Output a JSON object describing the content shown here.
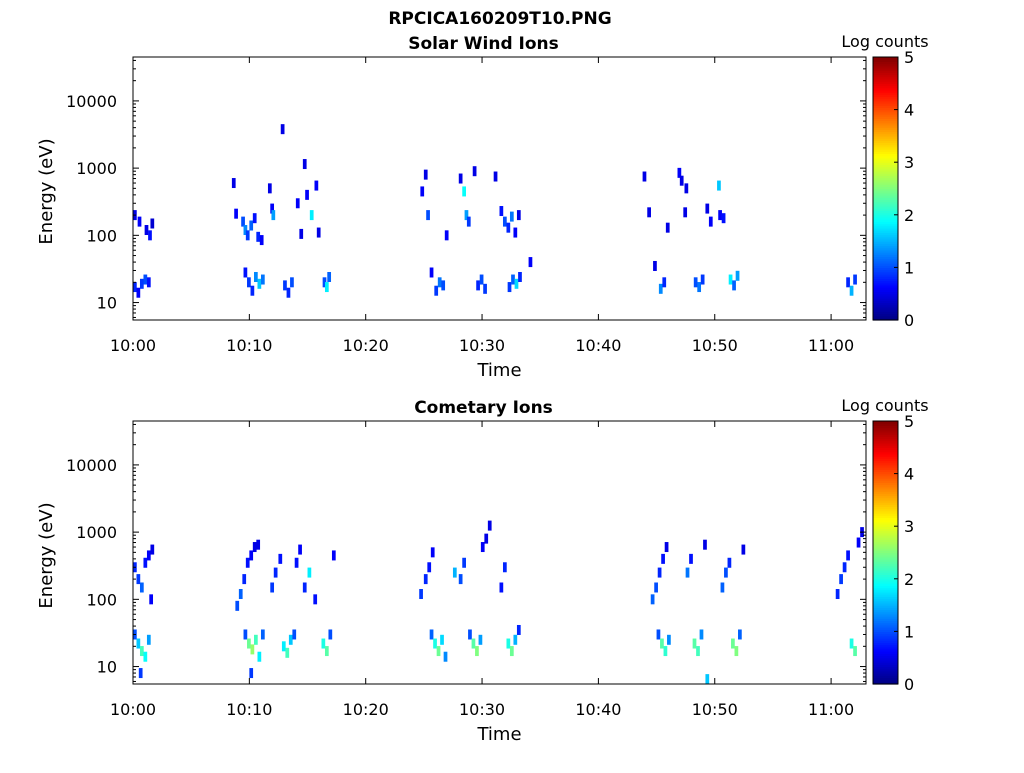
{
  "figure": {
    "suptitle": "RPCICA160209T10.PNG"
  },
  "chart_data": [
    {
      "type": "heatmap",
      "title": "Solar Wind Ions",
      "xlabel": "Time",
      "ylabel": "Energy (eV)",
      "x_ticks": [
        "10:00",
        "10:10",
        "10:20",
        "10:30",
        "10:40",
        "10:50",
        "11:00"
      ],
      "xlim_minutes": [
        0,
        63
      ],
      "y_scale": "log",
      "y_ticks": [
        "10",
        "100",
        "1000",
        "10000"
      ],
      "ylim": [
        5.5,
        45000
      ],
      "colorbar": {
        "label": "Log counts",
        "range": [
          0,
          5
        ],
        "ticks": [
          "0",
          "1",
          "2",
          "3",
          "4",
          "5"
        ],
        "colormap": "jet"
      },
      "cells": [
        {
          "t": 0.0,
          "e": 17,
          "v": 0.8
        },
        {
          "t": 0.3,
          "e": 14,
          "v": 0.6
        },
        {
          "t": 0.6,
          "e": 19,
          "v": 0.9
        },
        {
          "t": 0.9,
          "e": 22,
          "v": 1.0
        },
        {
          "t": 1.2,
          "e": 20,
          "v": 0.7
        },
        {
          "t": 0.0,
          "e": 200,
          "v": 0.5
        },
        {
          "t": 0.4,
          "e": 160,
          "v": 0.6
        },
        {
          "t": 1.0,
          "e": 120,
          "v": 0.5
        },
        {
          "t": 1.3,
          "e": 100,
          "v": 0.7
        },
        {
          "t": 1.5,
          "e": 150,
          "v": 0.4
        },
        {
          "t": 8.5,
          "e": 600,
          "v": 0.5
        },
        {
          "t": 8.7,
          "e": 210,
          "v": 0.6
        },
        {
          "t": 9.3,
          "e": 160,
          "v": 1.0
        },
        {
          "t": 9.5,
          "e": 120,
          "v": 1.3
        },
        {
          "t": 9.7,
          "e": 100,
          "v": 0.9
        },
        {
          "t": 10.0,
          "e": 140,
          "v": 1.1
        },
        {
          "t": 10.3,
          "e": 180,
          "v": 0.7
        },
        {
          "t": 10.6,
          "e": 95,
          "v": 0.8
        },
        {
          "t": 10.9,
          "e": 85,
          "v": 0.6
        },
        {
          "t": 9.5,
          "e": 28,
          "v": 0.7
        },
        {
          "t": 9.8,
          "e": 20,
          "v": 0.9
        },
        {
          "t": 10.1,
          "e": 15,
          "v": 0.8
        },
        {
          "t": 10.4,
          "e": 24,
          "v": 1.3
        },
        {
          "t": 10.7,
          "e": 19,
          "v": 1.6
        },
        {
          "t": 11.0,
          "e": 22,
          "v": 1.2
        },
        {
          "t": 11.6,
          "e": 500,
          "v": 0.5
        },
        {
          "t": 11.8,
          "e": 250,
          "v": 0.6
        },
        {
          "t": 11.9,
          "e": 200,
          "v": 1.4
        },
        {
          "t": 12.7,
          "e": 3800,
          "v": 0.5
        },
        {
          "t": 12.9,
          "e": 18,
          "v": 0.9
        },
        {
          "t": 13.2,
          "e": 14,
          "v": 0.8
        },
        {
          "t": 13.5,
          "e": 20,
          "v": 1.0
        },
        {
          "t": 14.0,
          "e": 300,
          "v": 0.6
        },
        {
          "t": 14.3,
          "e": 105,
          "v": 0.5
        },
        {
          "t": 14.6,
          "e": 1150,
          "v": 0.5
        },
        {
          "t": 14.8,
          "e": 400,
          "v": 0.6
        },
        {
          "t": 15.2,
          "e": 200,
          "v": 1.8
        },
        {
          "t": 15.6,
          "e": 550,
          "v": 0.6
        },
        {
          "t": 15.8,
          "e": 110,
          "v": 0.5
        },
        {
          "t": 16.3,
          "e": 20,
          "v": 1.0
        },
        {
          "t": 16.5,
          "e": 17,
          "v": 1.8
        },
        {
          "t": 16.7,
          "e": 24,
          "v": 1.1
        },
        {
          "t": 24.7,
          "e": 450,
          "v": 0.6
        },
        {
          "t": 25.0,
          "e": 800,
          "v": 0.5
        },
        {
          "t": 25.2,
          "e": 200,
          "v": 1.0
        },
        {
          "t": 25.5,
          "e": 28,
          "v": 0.6
        },
        {
          "t": 25.9,
          "e": 15,
          "v": 0.9
        },
        {
          "t": 26.2,
          "e": 20,
          "v": 1.2
        },
        {
          "t": 26.5,
          "e": 18,
          "v": 1.0
        },
        {
          "t": 26.8,
          "e": 100,
          "v": 0.6
        },
        {
          "t": 28.0,
          "e": 700,
          "v": 0.5
        },
        {
          "t": 28.3,
          "e": 450,
          "v": 1.9
        },
        {
          "t": 28.5,
          "e": 200,
          "v": 1.4
        },
        {
          "t": 28.7,
          "e": 160,
          "v": 0.9
        },
        {
          "t": 29.2,
          "e": 900,
          "v": 0.5
        },
        {
          "t": 29.5,
          "e": 18,
          "v": 0.8
        },
        {
          "t": 29.8,
          "e": 22,
          "v": 1.0
        },
        {
          "t": 30.1,
          "e": 16,
          "v": 0.9
        },
        {
          "t": 31.0,
          "e": 750,
          "v": 0.5
        },
        {
          "t": 31.5,
          "e": 230,
          "v": 0.7
        },
        {
          "t": 31.8,
          "e": 160,
          "v": 1.0
        },
        {
          "t": 32.1,
          "e": 130,
          "v": 0.8
        },
        {
          "t": 32.4,
          "e": 190,
          "v": 1.2
        },
        {
          "t": 32.7,
          "e": 110,
          "v": 0.6
        },
        {
          "t": 33.0,
          "e": 200,
          "v": 0.5
        },
        {
          "t": 32.2,
          "e": 17,
          "v": 0.9
        },
        {
          "t": 32.5,
          "e": 22,
          "v": 1.1
        },
        {
          "t": 32.8,
          "e": 19,
          "v": 1.7
        },
        {
          "t": 33.1,
          "e": 24,
          "v": 0.8
        },
        {
          "t": 34.0,
          "e": 40,
          "v": 0.6
        },
        {
          "t": 43.8,
          "e": 750,
          "v": 0.5
        },
        {
          "t": 44.2,
          "e": 220,
          "v": 0.5
        },
        {
          "t": 44.7,
          "e": 35,
          "v": 0.5
        },
        {
          "t": 45.2,
          "e": 16,
          "v": 1.3
        },
        {
          "t": 45.5,
          "e": 20,
          "v": 0.8
        },
        {
          "t": 45.8,
          "e": 130,
          "v": 0.5
        },
        {
          "t": 46.8,
          "e": 850,
          "v": 0.6
        },
        {
          "t": 47.0,
          "e": 650,
          "v": 0.5
        },
        {
          "t": 47.4,
          "e": 500,
          "v": 0.5
        },
        {
          "t": 47.3,
          "e": 220,
          "v": 0.5
        },
        {
          "t": 48.2,
          "e": 20,
          "v": 1.0
        },
        {
          "t": 48.5,
          "e": 17,
          "v": 1.2
        },
        {
          "t": 48.8,
          "e": 22,
          "v": 0.9
        },
        {
          "t": 49.2,
          "e": 250,
          "v": 0.5
        },
        {
          "t": 49.5,
          "e": 160,
          "v": 0.6
        },
        {
          "t": 50.2,
          "e": 550,
          "v": 1.6
        },
        {
          "t": 50.3,
          "e": 200,
          "v": 0.6
        },
        {
          "t": 50.6,
          "e": 180,
          "v": 0.7
        },
        {
          "t": 51.2,
          "e": 22,
          "v": 1.8
        },
        {
          "t": 51.5,
          "e": 18,
          "v": 1.1
        },
        {
          "t": 51.8,
          "e": 25,
          "v": 1.4
        },
        {
          "t": 61.3,
          "e": 20,
          "v": 0.8
        },
        {
          "t": 61.6,
          "e": 15,
          "v": 1.5
        },
        {
          "t": 61.9,
          "e": 22,
          "v": 0.9
        }
      ]
    },
    {
      "type": "heatmap",
      "title": "Cometary Ions",
      "xlabel": "Time",
      "ylabel": "Energy (eV)",
      "x_ticks": [
        "10:00",
        "10:10",
        "10:20",
        "10:30",
        "10:40",
        "10:50",
        "11:00"
      ],
      "xlim_minutes": [
        0,
        63
      ],
      "y_scale": "log",
      "y_ticks": [
        "10",
        "100",
        "1000",
        "10000"
      ],
      "ylim": [
        5.5,
        45000
      ],
      "colorbar": {
        "label": "Log counts",
        "range": [
          0,
          5
        ],
        "ticks": [
          "0",
          "1",
          "2",
          "3",
          "4",
          "5"
        ],
        "colormap": "jet"
      },
      "cells": [
        {
          "t": 0.0,
          "e": 300,
          "v": 0.8
        },
        {
          "t": 0.3,
          "e": 200,
          "v": 0.9
        },
        {
          "t": 0.6,
          "e": 150,
          "v": 1.1
        },
        {
          "t": 0.9,
          "e": 350,
          "v": 0.7
        },
        {
          "t": 1.2,
          "e": 450,
          "v": 0.6
        },
        {
          "t": 1.5,
          "e": 550,
          "v": 0.5
        },
        {
          "t": 1.4,
          "e": 100,
          "v": 0.6
        },
        {
          "t": 0.0,
          "e": 30,
          "v": 1.0
        },
        {
          "t": 0.3,
          "e": 22,
          "v": 1.6
        },
        {
          "t": 0.6,
          "e": 17,
          "v": 2.2
        },
        {
          "t": 0.9,
          "e": 14,
          "v": 1.9
        },
        {
          "t": 1.2,
          "e": 25,
          "v": 1.4
        },
        {
          "t": 0.5,
          "e": 8,
          "v": 0.9
        },
        {
          "t": 8.8,
          "e": 80,
          "v": 1.0
        },
        {
          "t": 9.1,
          "e": 120,
          "v": 1.1
        },
        {
          "t": 9.4,
          "e": 200,
          "v": 0.8
        },
        {
          "t": 9.7,
          "e": 350,
          "v": 0.7
        },
        {
          "t": 10.0,
          "e": 450,
          "v": 0.6
        },
        {
          "t": 10.3,
          "e": 600,
          "v": 0.5
        },
        {
          "t": 10.6,
          "e": 650,
          "v": 0.5
        },
        {
          "t": 9.5,
          "e": 30,
          "v": 1.0
        },
        {
          "t": 9.8,
          "e": 22,
          "v": 2.4
        },
        {
          "t": 10.1,
          "e": 18,
          "v": 2.6
        },
        {
          "t": 10.4,
          "e": 25,
          "v": 2.2
        },
        {
          "t": 10.7,
          "e": 14,
          "v": 1.8
        },
        {
          "t": 11.0,
          "e": 30,
          "v": 1.1
        },
        {
          "t": 10.0,
          "e": 8,
          "v": 0.9
        },
        {
          "t": 11.8,
          "e": 150,
          "v": 0.9
        },
        {
          "t": 12.1,
          "e": 250,
          "v": 0.8
        },
        {
          "t": 12.5,
          "e": 400,
          "v": 0.7
        },
        {
          "t": 12.8,
          "e": 20,
          "v": 1.8
        },
        {
          "t": 13.1,
          "e": 16,
          "v": 2.2
        },
        {
          "t": 13.4,
          "e": 25,
          "v": 1.6
        },
        {
          "t": 13.7,
          "e": 30,
          "v": 1.0
        },
        {
          "t": 13.9,
          "e": 350,
          "v": 0.7
        },
        {
          "t": 14.2,
          "e": 550,
          "v": 0.6
        },
        {
          "t": 14.6,
          "e": 150,
          "v": 0.8
        },
        {
          "t": 15.0,
          "e": 250,
          "v": 1.8
        },
        {
          "t": 15.5,
          "e": 100,
          "v": 0.7
        },
        {
          "t": 16.2,
          "e": 22,
          "v": 2.0
        },
        {
          "t": 16.5,
          "e": 17,
          "v": 2.3
        },
        {
          "t": 16.8,
          "e": 30,
          "v": 1.0
        },
        {
          "t": 17.1,
          "e": 450,
          "v": 0.6
        },
        {
          "t": 24.6,
          "e": 120,
          "v": 0.9
        },
        {
          "t": 25.0,
          "e": 200,
          "v": 0.8
        },
        {
          "t": 25.3,
          "e": 300,
          "v": 0.7
        },
        {
          "t": 25.6,
          "e": 500,
          "v": 0.6
        },
        {
          "t": 25.5,
          "e": 30,
          "v": 1.1
        },
        {
          "t": 25.8,
          "e": 22,
          "v": 2.0
        },
        {
          "t": 26.1,
          "e": 17,
          "v": 2.4
        },
        {
          "t": 26.4,
          "e": 25,
          "v": 1.7
        },
        {
          "t": 26.7,
          "e": 14,
          "v": 1.3
        },
        {
          "t": 27.5,
          "e": 250,
          "v": 1.5
        },
        {
          "t": 28.0,
          "e": 200,
          "v": 1.0
        },
        {
          "t": 28.3,
          "e": 350,
          "v": 0.9
        },
        {
          "t": 28.8,
          "e": 30,
          "v": 1.0
        },
        {
          "t": 29.1,
          "e": 22,
          "v": 2.3
        },
        {
          "t": 29.4,
          "e": 17,
          "v": 2.5
        },
        {
          "t": 29.7,
          "e": 25,
          "v": 1.4
        },
        {
          "t": 29.9,
          "e": 600,
          "v": 0.6
        },
        {
          "t": 30.2,
          "e": 800,
          "v": 0.5
        },
        {
          "t": 30.5,
          "e": 1250,
          "v": 0.5
        },
        {
          "t": 31.5,
          "e": 150,
          "v": 0.7
        },
        {
          "t": 31.8,
          "e": 300,
          "v": 0.8
        },
        {
          "t": 32.1,
          "e": 22,
          "v": 2.0
        },
        {
          "t": 32.4,
          "e": 17,
          "v": 2.4
        },
        {
          "t": 32.7,
          "e": 25,
          "v": 1.5
        },
        {
          "t": 33.0,
          "e": 35,
          "v": 0.8
        },
        {
          "t": 44.5,
          "e": 100,
          "v": 1.1
        },
        {
          "t": 44.8,
          "e": 150,
          "v": 1.0
        },
        {
          "t": 45.1,
          "e": 250,
          "v": 0.8
        },
        {
          "t": 45.4,
          "e": 400,
          "v": 0.7
        },
        {
          "t": 45.7,
          "e": 600,
          "v": 0.5
        },
        {
          "t": 45.0,
          "e": 30,
          "v": 1.0
        },
        {
          "t": 45.3,
          "e": 22,
          "v": 2.3
        },
        {
          "t": 45.6,
          "e": 17,
          "v": 2.1
        },
        {
          "t": 45.9,
          "e": 25,
          "v": 1.3
        },
        {
          "t": 47.5,
          "e": 250,
          "v": 1.2
        },
        {
          "t": 47.8,
          "e": 400,
          "v": 0.7
        },
        {
          "t": 48.1,
          "e": 22,
          "v": 2.3
        },
        {
          "t": 48.4,
          "e": 17,
          "v": 2.2
        },
        {
          "t": 48.7,
          "e": 30,
          "v": 1.3
        },
        {
          "t": 49.0,
          "e": 650,
          "v": 0.5
        },
        {
          "t": 49.2,
          "e": 6.5,
          "v": 1.6
        },
        {
          "t": 50.5,
          "e": 150,
          "v": 1.1
        },
        {
          "t": 50.8,
          "e": 250,
          "v": 1.0
        },
        {
          "t": 51.1,
          "e": 350,
          "v": 0.8
        },
        {
          "t": 51.4,
          "e": 22,
          "v": 2.4
        },
        {
          "t": 51.7,
          "e": 17,
          "v": 2.5
        },
        {
          "t": 52.0,
          "e": 30,
          "v": 1.1
        },
        {
          "t": 52.3,
          "e": 550,
          "v": 0.5
        },
        {
          "t": 60.4,
          "e": 120,
          "v": 0.8
        },
        {
          "t": 60.7,
          "e": 200,
          "v": 0.9
        },
        {
          "t": 61.0,
          "e": 300,
          "v": 0.8
        },
        {
          "t": 61.3,
          "e": 450,
          "v": 0.7
        },
        {
          "t": 61.6,
          "e": 22,
          "v": 2.0
        },
        {
          "t": 61.9,
          "e": 17,
          "v": 2.3
        },
        {
          "t": 62.2,
          "e": 700,
          "v": 0.6
        },
        {
          "t": 62.5,
          "e": 1000,
          "v": 0.5
        }
      ]
    }
  ]
}
